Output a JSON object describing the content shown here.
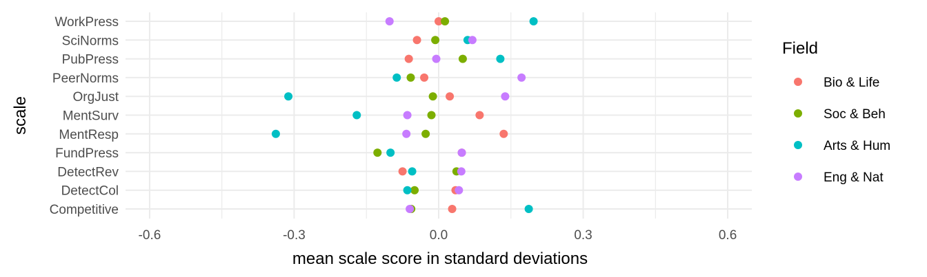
{
  "chart_data": {
    "type": "scatter",
    "xlabel": "mean scale score in standard deviations",
    "ylabel": "scale",
    "xlim": [
      -0.65,
      0.65
    ],
    "x_ticks": [
      -0.6,
      -0.3,
      0.0,
      0.3,
      0.6
    ],
    "x_tick_labels": [
      "-0.6",
      "-0.3",
      "0.0",
      "0.3",
      "0.6"
    ],
    "categories": [
      "WorkPress",
      "SciNorms",
      "PubPress",
      "PeerNorms",
      "OrgJust",
      "MentSurv",
      "MentResp",
      "FundPress",
      "DetectRev",
      "DetectCol",
      "Competitive"
    ],
    "grid": true,
    "legend": {
      "title": "Field",
      "placement": "right"
    },
    "series": [
      {
        "name": "Bio & Life",
        "color": "#F8766D",
        "values": [
          0.0,
          -0.045,
          -0.062,
          -0.03,
          0.023,
          0.085,
          0.135,
          0.048,
          -0.075,
          0.035,
          0.028
        ]
      },
      {
        "name": "Soc & Beh",
        "color": "#7CAE00",
        "values": [
          0.013,
          -0.007,
          0.05,
          -0.058,
          -0.012,
          -0.015,
          -0.027,
          -0.127,
          0.037,
          -0.05,
          -0.057
        ]
      },
      {
        "name": "Arts & Hum",
        "color": "#00BFC4",
        "values": [
          0.197,
          0.06,
          0.128,
          -0.087,
          -0.312,
          -0.17,
          -0.338,
          -0.1,
          -0.055,
          -0.065,
          0.187
        ]
      },
      {
        "name": "Eng & Nat",
        "color": "#C77CFF",
        "values": [
          -0.102,
          0.07,
          -0.005,
          0.172,
          0.138,
          -0.065,
          -0.067,
          0.048,
          0.047,
          0.042,
          -0.06
        ]
      }
    ]
  }
}
